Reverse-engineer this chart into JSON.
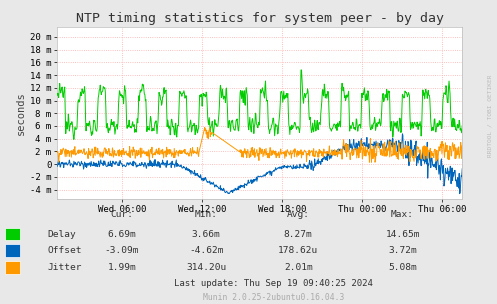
{
  "title": "NTP timing statistics for system peer - by day",
  "ylabel": "seconds",
  "background_color": "#e8e8e8",
  "plot_bg_color": "#ffffff",
  "grid_color": "#ffaaaa",
  "x_tick_labels": [
    "Wed 06:00",
    "Wed 12:00",
    "Wed 18:00",
    "Thu 00:00",
    "Thu 06:00"
  ],
  "y_tick_labels": [
    "-4 m",
    "-2 m",
    "0",
    "2 m",
    "4 m",
    "6 m",
    "8 m",
    "10 m",
    "12 m",
    "14 m",
    "16 m",
    "18 m",
    "20 m"
  ],
  "y_tick_values": [
    -0.004,
    -0.002,
    0.0,
    0.002,
    0.004,
    0.006,
    0.008,
    0.01,
    0.012,
    0.014,
    0.016,
    0.018,
    0.02
  ],
  "delay_color": "#00cc00",
  "offset_color": "#0066bb",
  "jitter_color": "#ff9900",
  "rrdtool_text": "RRDTOOL / TOBI OETIKER",
  "stats_headers": [
    "Cur:",
    "Min:",
    "Avg:",
    "Max:"
  ],
  "stats_rows": [
    {
      "label": "Delay",
      "color": "#00cc00",
      "vals": [
        "6.69m",
        "3.66m",
        "8.27m",
        "14.65m"
      ]
    },
    {
      "label": "Offset",
      "color": "#0066bb",
      "vals": [
        "-3.09m",
        "-4.62m",
        "178.62u",
        "3.72m"
      ]
    },
    {
      "label": "Jitter",
      "color": "#ff9900",
      "vals": [
        "1.99m",
        "314.20u",
        "2.01m",
        "5.08m"
      ]
    }
  ],
  "last_update": "Last update: Thu Sep 19 09:40:25 2024",
  "munin_version": "Munin 2.0.25-2ubuntu0.16.04.3",
  "ylim": [
    -0.0055,
    0.0215
  ],
  "xlim": [
    0.0,
    1.0
  ]
}
